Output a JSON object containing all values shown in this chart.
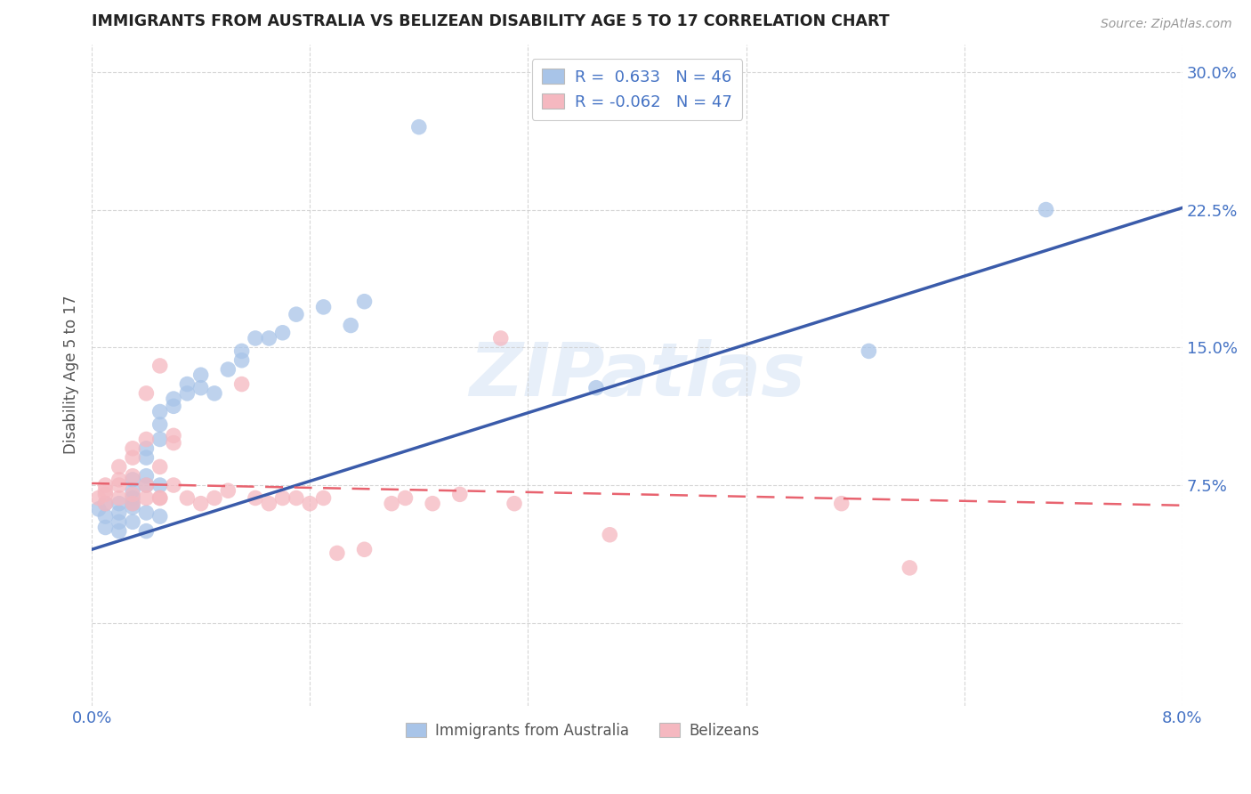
{
  "title": "IMMIGRANTS FROM AUSTRALIA VS BELIZEAN DISABILITY AGE 5 TO 17 CORRELATION CHART",
  "source": "Source: ZipAtlas.com",
  "ylabel": "Disability Age 5 to 17",
  "xlim": [
    0.0,
    0.08
  ],
  "ylim": [
    -0.045,
    0.315
  ],
  "ytick_vals": [
    0.0,
    0.075,
    0.15,
    0.225,
    0.3
  ],
  "ytick_labels": [
    "",
    "7.5%",
    "15.0%",
    "22.5%",
    "30.0%"
  ],
  "xtick_vals": [
    0.0,
    0.016,
    0.032,
    0.048,
    0.064,
    0.08
  ],
  "xtick_labels": [
    "0.0%",
    "",
    "",
    "",
    "",
    "8.0%"
  ],
  "legend_label1": "Immigrants from Australia",
  "legend_label2": "Belizeans",
  "blue_color": "#a8c4e8",
  "pink_color": "#f5b8c0",
  "blue_line_color": "#3a5baa",
  "pink_line_color": "#e8636f",
  "title_color": "#222222",
  "axis_label_color": "#4472c4",
  "watermark": "ZIPatlas",
  "blue_scatter_x": [
    0.0005,
    0.001,
    0.001,
    0.001,
    0.002,
    0.002,
    0.002,
    0.002,
    0.003,
    0.003,
    0.003,
    0.003,
    0.003,
    0.003,
    0.004,
    0.004,
    0.004,
    0.004,
    0.004,
    0.004,
    0.005,
    0.005,
    0.005,
    0.005,
    0.005,
    0.006,
    0.006,
    0.007,
    0.007,
    0.008,
    0.008,
    0.009,
    0.01,
    0.011,
    0.011,
    0.012,
    0.013,
    0.014,
    0.015,
    0.017,
    0.019,
    0.02,
    0.024,
    0.037,
    0.057,
    0.07
  ],
  "blue_scatter_y": [
    0.062,
    0.058,
    0.052,
    0.065,
    0.055,
    0.065,
    0.05,
    0.06,
    0.063,
    0.068,
    0.072,
    0.078,
    0.065,
    0.055,
    0.075,
    0.08,
    0.09,
    0.095,
    0.06,
    0.05,
    0.1,
    0.108,
    0.115,
    0.075,
    0.058,
    0.118,
    0.122,
    0.125,
    0.13,
    0.128,
    0.135,
    0.125,
    0.138,
    0.143,
    0.148,
    0.155,
    0.155,
    0.158,
    0.168,
    0.172,
    0.162,
    0.175,
    0.27,
    0.128,
    0.148,
    0.225
  ],
  "pink_scatter_x": [
    0.0005,
    0.001,
    0.001,
    0.001,
    0.001,
    0.002,
    0.002,
    0.002,
    0.002,
    0.003,
    0.003,
    0.003,
    0.003,
    0.003,
    0.004,
    0.004,
    0.004,
    0.004,
    0.005,
    0.005,
    0.005,
    0.005,
    0.006,
    0.006,
    0.006,
    0.007,
    0.008,
    0.009,
    0.01,
    0.011,
    0.012,
    0.013,
    0.014,
    0.015,
    0.016,
    0.017,
    0.018,
    0.02,
    0.022,
    0.023,
    0.025,
    0.027,
    0.03,
    0.031,
    0.038,
    0.055,
    0.06
  ],
  "pink_scatter_y": [
    0.068,
    0.072,
    0.065,
    0.07,
    0.075,
    0.078,
    0.068,
    0.085,
    0.075,
    0.07,
    0.065,
    0.08,
    0.09,
    0.095,
    0.068,
    0.075,
    0.1,
    0.125,
    0.085,
    0.068,
    0.068,
    0.14,
    0.098,
    0.102,
    0.075,
    0.068,
    0.065,
    0.068,
    0.072,
    0.13,
    0.068,
    0.065,
    0.068,
    0.068,
    0.065,
    0.068,
    0.038,
    0.04,
    0.065,
    0.068,
    0.065,
    0.07,
    0.155,
    0.065,
    0.048,
    0.065,
    0.03
  ],
  "blue_line_x": [
    0.0,
    0.08
  ],
  "blue_line_y": [
    0.04,
    0.226
  ],
  "pink_line_x": [
    0.0,
    0.08
  ],
  "pink_line_y": [
    0.076,
    0.064
  ]
}
